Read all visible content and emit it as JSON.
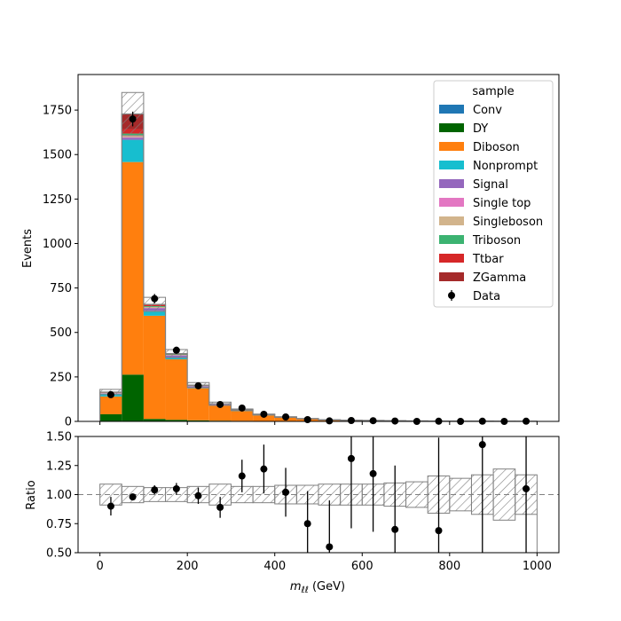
{
  "chart_data": {
    "type": "bar",
    "stacked": true,
    "histogram": true,
    "x": {
      "label_base": "m",
      "label_sub": "ℓℓ",
      "label_unit": " (GeV)",
      "range": [
        -50,
        1050
      ],
      "ticks": [
        0,
        200,
        400,
        600,
        800,
        1000
      ],
      "tick_labels": [
        "0",
        "200",
        "400",
        "600",
        "800",
        "1000"
      ],
      "bin_edges": [
        0,
        50,
        100,
        150,
        200,
        250,
        300,
        350,
        400,
        450,
        500,
        550,
        600,
        650,
        700,
        750,
        800,
        850,
        900,
        950,
        1000
      ]
    },
    "main": {
      "ylabel": "Events",
      "ylim": [
        0,
        1950
      ],
      "yticks": [
        0,
        250,
        500,
        750,
        1000,
        1250,
        1500,
        1750
      ],
      "ytick_labels": [
        "0",
        "250",
        "500",
        "750",
        "1000",
        "1250",
        "1500",
        "1750"
      ]
    },
    "ratio": {
      "ylabel": "Ratio",
      "ylim": [
        0.5,
        1.5
      ],
      "yticks": [
        0.5,
        0.75,
        1.0,
        1.25,
        1.5
      ],
      "ytick_labels": [
        "0.50",
        "0.75",
        "1.00",
        "1.25",
        "1.50"
      ],
      "reference_line": 1.0
    },
    "series": [
      {
        "name": "Conv",
        "color": "#1f77b4",
        "values": [
          0,
          1,
          0,
          0,
          0,
          0,
          0,
          0,
          0,
          0,
          0,
          0,
          0,
          0,
          0,
          0,
          0,
          0,
          0,
          0
        ]
      },
      {
        "name": "DY",
        "color": "#006400",
        "values": [
          40,
          262,
          14,
          9,
          6,
          4,
          3,
          2,
          1,
          1,
          0.5,
          0.5,
          0.5,
          0.3,
          0.3,
          0.2,
          0.2,
          0.2,
          0.1,
          0.1
        ]
      },
      {
        "name": "Diboson",
        "color": "#ff7f0e",
        "values": [
          100,
          1195,
          580,
          340,
          180,
          85,
          55,
          32,
          20,
          12,
          7,
          5,
          4,
          3,
          2,
          1.5,
          1,
          1,
          0.8,
          0.5
        ]
      },
      {
        "name": "Nonprompt",
        "color": "#17becf",
        "values": [
          15,
          125,
          28,
          12,
          5,
          3,
          2,
          1,
          1,
          0.5,
          0.3,
          0.2,
          0.2,
          0.1,
          0.1,
          0.1,
          0.1,
          0,
          0,
          0
        ]
      },
      {
        "name": "Signal",
        "color": "#9467bd",
        "values": [
          2,
          12,
          14,
          10,
          6,
          4,
          3,
          2,
          1.5,
          1,
          0.5,
          0.5,
          0.3,
          0.3,
          0.2,
          0.2,
          0.1,
          0.1,
          0.1,
          0.1
        ]
      },
      {
        "name": "Single top",
        "color": "#e377c2",
        "values": [
          1,
          3,
          2,
          1,
          1,
          0.5,
          0.3,
          0.2,
          0.1,
          0,
          0,
          0,
          0,
          0,
          0,
          0,
          0,
          0,
          0,
          0
        ]
      },
      {
        "name": "Singleboson",
        "color": "#d2b48c",
        "values": [
          2,
          12,
          5,
          2,
          1,
          0.5,
          0.3,
          0.2,
          0.1,
          0.1,
          0,
          0,
          0,
          0,
          0,
          0,
          0,
          0,
          0,
          0
        ]
      },
      {
        "name": "Triboson",
        "color": "#3cb371",
        "values": [
          1,
          8,
          5,
          3,
          2,
          1,
          1,
          0.5,
          0.5,
          0.3,
          0.2,
          0.1,
          0.1,
          0.1,
          0,
          0,
          0,
          0,
          0,
          0
        ]
      },
      {
        "name": "Ttbar",
        "color": "#d62728",
        "values": [
          3,
          25,
          7,
          3,
          2,
          1,
          0.5,
          0.5,
          0.3,
          0.2,
          0.1,
          0.1,
          0,
          0,
          0,
          0,
          0,
          0,
          0,
          0
        ]
      },
      {
        "name": "ZGamma",
        "color": "#a52a2a",
        "values": [
          1,
          85,
          3,
          1,
          1,
          0.5,
          0.3,
          0.2,
          0.1,
          0.1,
          0,
          0,
          0,
          0,
          0,
          0,
          0,
          0,
          0,
          0
        ]
      }
    ],
    "mc_uncertainty": [
      0.09,
      0.07,
      0.06,
      0.06,
      0.07,
      0.09,
      0.07,
      0.07,
      0.08,
      0.08,
      0.09,
      0.09,
      0.09,
      0.1,
      0.11,
      0.16,
      0.14,
      0.17,
      0.22,
      0.17
    ],
    "data": {
      "name": "Data",
      "x": [
        25,
        75,
        125,
        175,
        225,
        275,
        325,
        375,
        425,
        475,
        525,
        575,
        625,
        675,
        725,
        775,
        825,
        875,
        925,
        975
      ],
      "values": [
        150,
        1700,
        690,
        400,
        200,
        95,
        75,
        40,
        25,
        10,
        3,
        5,
        4,
        2,
        0,
        1,
        0,
        1,
        0,
        1
      ],
      "ratio": [
        0.9,
        0.98,
        1.04,
        1.05,
        0.99,
        0.89,
        1.16,
        1.22,
        1.02,
        0.75,
        0.55,
        1.31,
        1.18,
        0.7,
        null,
        0.69,
        null,
        1.43,
        null,
        1.05
      ],
      "ratio_err": [
        0.08,
        0.025,
        0.04,
        0.05,
        0.07,
        0.09,
        0.14,
        0.21,
        0.21,
        0.28,
        0.4,
        0.6,
        0.5,
        0.55,
        null,
        0.8,
        null,
        1.05,
        null,
        1.1
      ]
    },
    "legend": {
      "title": "sample",
      "placement": "top-right",
      "entries": [
        "Conv",
        "DY",
        "Diboson",
        "Nonprompt",
        "Signal",
        "Single top",
        "Singleboson",
        "Triboson",
        "Ttbar",
        "ZGamma",
        "Data"
      ]
    }
  }
}
